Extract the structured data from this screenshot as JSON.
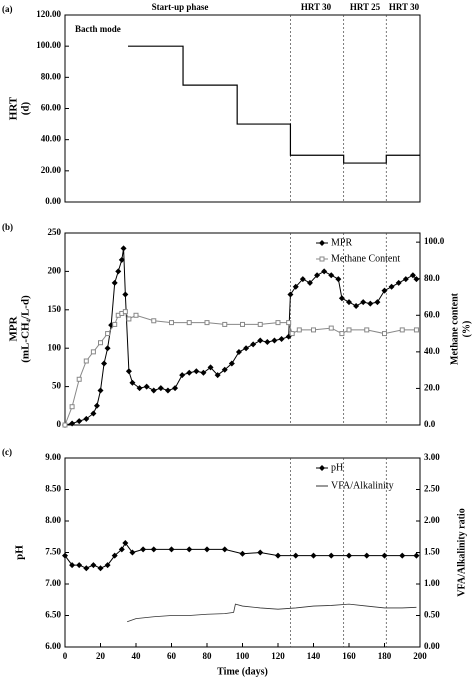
{
  "chart_data": [
    {
      "type": "step",
      "label": "(a)",
      "ylabel": [
        "HRT",
        "(d)"
      ],
      "xlim": [
        0,
        200
      ],
      "ylim": [
        0,
        120
      ],
      "yticks": [
        {
          "value": 0,
          "label": "0.00"
        },
        {
          "value": 20,
          "label": "20.00"
        },
        {
          "value": 40,
          "label": "40.00"
        },
        {
          "value": 60,
          "label": "60.00"
        },
        {
          "value": 80,
          "label": "80.00"
        },
        {
          "value": 100,
          "label": "100.00"
        },
        {
          "value": 120,
          "label": "120.00"
        }
      ],
      "vlines": [
        127,
        157,
        181
      ],
      "annotations": [
        "Bacth mode",
        "Start-up phase",
        "HRT 30",
        "HRT 25",
        "HRT 30"
      ],
      "series": [
        {
          "color": "#000000",
          "x": [
            35.5,
            66.5,
            97,
            127,
            157,
            181
          ],
          "values": [
            100,
            75,
            50,
            30,
            25,
            30
          ]
        }
      ]
    },
    {
      "type": "line",
      "label": "(b)",
      "ylabel": [
        "MPR",
        "(mL-CH₄/L-d)"
      ],
      "y2label": [
        "Methane content",
        "(%)"
      ],
      "xlim": [
        0,
        200
      ],
      "ylim": [
        0,
        250
      ],
      "yticks": [
        0,
        50,
        100,
        150,
        200,
        250
      ],
      "y2lim": [
        0,
        105
      ],
      "y2ticks": [
        {
          "value": 0,
          "label": "0.0"
        },
        {
          "value": 20,
          "label": "20.0"
        },
        {
          "value": 40,
          "label": "40.0"
        },
        {
          "value": 60,
          "label": "60.0"
        },
        {
          "value": 80,
          "label": "80.0"
        },
        {
          "value": 100,
          "label": "100.0"
        }
      ],
      "vlines": [
        127,
        157,
        181
      ],
      "series": [
        {
          "name": "MPR",
          "color": "#000000",
          "marker": "diamond",
          "x": [
            0,
            4,
            8,
            12,
            16,
            18,
            20,
            22,
            24,
            26,
            28,
            30,
            32,
            33,
            34,
            36,
            38,
            42,
            46,
            50,
            54,
            58,
            62,
            66,
            70,
            74,
            78,
            82,
            86,
            90,
            94,
            98,
            102,
            106,
            110,
            114,
            118,
            122,
            126,
            127,
            130,
            134,
            138,
            142,
            146,
            150,
            154,
            156,
            160,
            164,
            168,
            172,
            176,
            180,
            184,
            188,
            192,
            196,
            198
          ],
          "values": [
            0,
            2,
            5,
            8,
            15,
            25,
            45,
            80,
            100,
            130,
            185,
            200,
            215,
            230,
            170,
            70,
            55,
            48,
            50,
            45,
            48,
            45,
            48,
            65,
            68,
            70,
            68,
            75,
            65,
            72,
            80,
            95,
            100,
            105,
            110,
            108,
            110,
            112,
            115,
            170,
            180,
            190,
            185,
            195,
            200,
            195,
            190,
            165,
            160,
            155,
            160,
            158,
            160,
            175,
            180,
            185,
            190,
            195,
            190
          ]
        },
        {
          "name": "Methane Content",
          "color": "#888888",
          "marker": "square",
          "axis": "y2",
          "x": [
            0,
            4,
            8,
            12,
            16,
            20,
            24,
            28,
            30,
            32,
            34,
            36,
            40,
            50,
            60,
            70,
            80,
            90,
            100,
            110,
            120,
            126,
            128,
            132,
            140,
            150,
            156,
            160,
            170,
            180,
            190,
            198
          ],
          "values": [
            0,
            10,
            25,
            35,
            40,
            45,
            50,
            55,
            60,
            61,
            62,
            58,
            60,
            57,
            56,
            56,
            56,
            55,
            55,
            55,
            56,
            56,
            50,
            52,
            52,
            53,
            50,
            52,
            52,
            50,
            52,
            52
          ]
        }
      ]
    },
    {
      "type": "line",
      "label": "(c)",
      "ylabel": [
        "pH"
      ],
      "y2label": [
        "VFA/Alkalinity ratio"
      ],
      "xlabel": "Time (days)",
      "xlim": [
        0,
        200
      ],
      "xticks": [
        0,
        20,
        40,
        60,
        80,
        100,
        120,
        140,
        160,
        180,
        200
      ],
      "ylim": [
        6,
        9
      ],
      "yticks": [
        {
          "value": 6,
          "label": "6.00"
        },
        {
          "value": 6.5,
          "label": "6.50"
        },
        {
          "value": 7,
          "label": "7.00"
        },
        {
          "value": 7.5,
          "label": "7.50"
        },
        {
          "value": 8,
          "label": "8.00"
        },
        {
          "value": 8.5,
          "label": "8.50"
        },
        {
          "value": 9,
          "label": "9.00"
        }
      ],
      "y2lim": [
        0,
        3
      ],
      "y2ticks": [
        {
          "value": 0,
          "label": "0.00"
        },
        {
          "value": 0.5,
          "label": "0.50"
        },
        {
          "value": 1,
          "label": "1.00"
        },
        {
          "value": 1.5,
          "label": "1.50"
        },
        {
          "value": 2,
          "label": "2.00"
        },
        {
          "value": 2.5,
          "label": "2.50"
        },
        {
          "value": 3,
          "label": "3.00"
        }
      ],
      "vlines": [
        127,
        157,
        181
      ],
      "series": [
        {
          "name": "pH",
          "color": "#000000",
          "marker": "diamond",
          "x": [
            0,
            4,
            8,
            12,
            16,
            20,
            24,
            28,
            32,
            34,
            38,
            44,
            50,
            60,
            70,
            80,
            90,
            100,
            110,
            120,
            130,
            140,
            150,
            160,
            170,
            180,
            190,
            198
          ],
          "values": [
            7.45,
            7.3,
            7.3,
            7.25,
            7.3,
            7.25,
            7.3,
            7.45,
            7.55,
            7.65,
            7.5,
            7.55,
            7.55,
            7.55,
            7.55,
            7.55,
            7.55,
            7.48,
            7.5,
            7.45,
            7.45,
            7.45,
            7.45,
            7.45,
            7.45,
            7.45,
            7.45,
            7.45
          ]
        },
        {
          "name": "VFA/Alkalinity",
          "color": "#333333",
          "marker": "none",
          "axis": "y2",
          "x": [
            35,
            40,
            50,
            60,
            70,
            80,
            90,
            95,
            96,
            100,
            110,
            120,
            130,
            140,
            150,
            160,
            170,
            180,
            190,
            198
          ],
          "values": [
            0.4,
            0.45,
            0.48,
            0.5,
            0.5,
            0.52,
            0.53,
            0.55,
            0.68,
            0.65,
            0.62,
            0.6,
            0.62,
            0.65,
            0.66,
            0.68,
            0.65,
            0.62,
            0.62,
            0.63
          ]
        }
      ]
    }
  ]
}
